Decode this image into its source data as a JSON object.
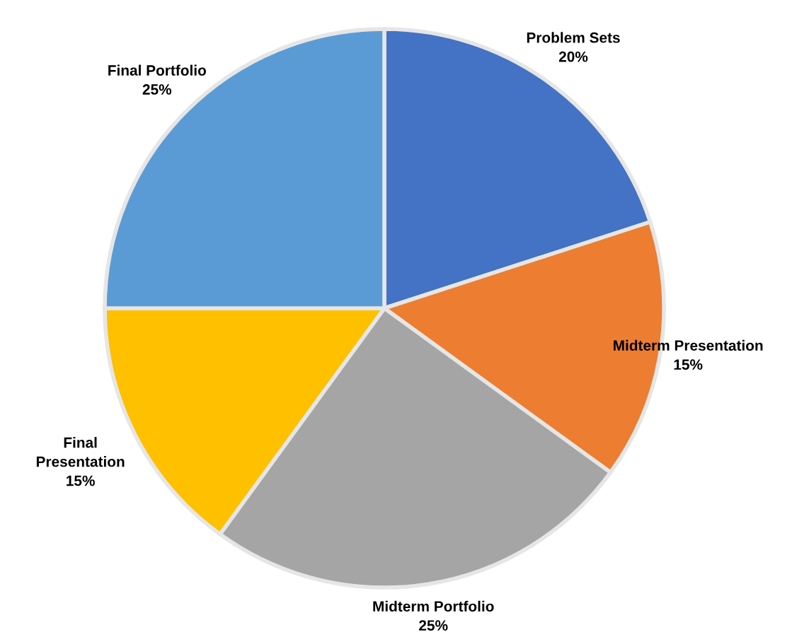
{
  "chart_data": {
    "type": "pie",
    "categories": [
      "Problem Sets",
      "Midterm Presentation",
      "Midterm Portfolio",
      "Final\nPresentation",
      "Final Portfolio"
    ],
    "values": [
      20,
      15,
      25,
      15,
      25
    ],
    "colors": [
      "#4472c4",
      "#ed7d31",
      "#a5a5a5",
      "#ffc000",
      "#5b9bd5"
    ],
    "value_labels": [
      "20%",
      "15%",
      "25%",
      "15%",
      "25%"
    ]
  }
}
